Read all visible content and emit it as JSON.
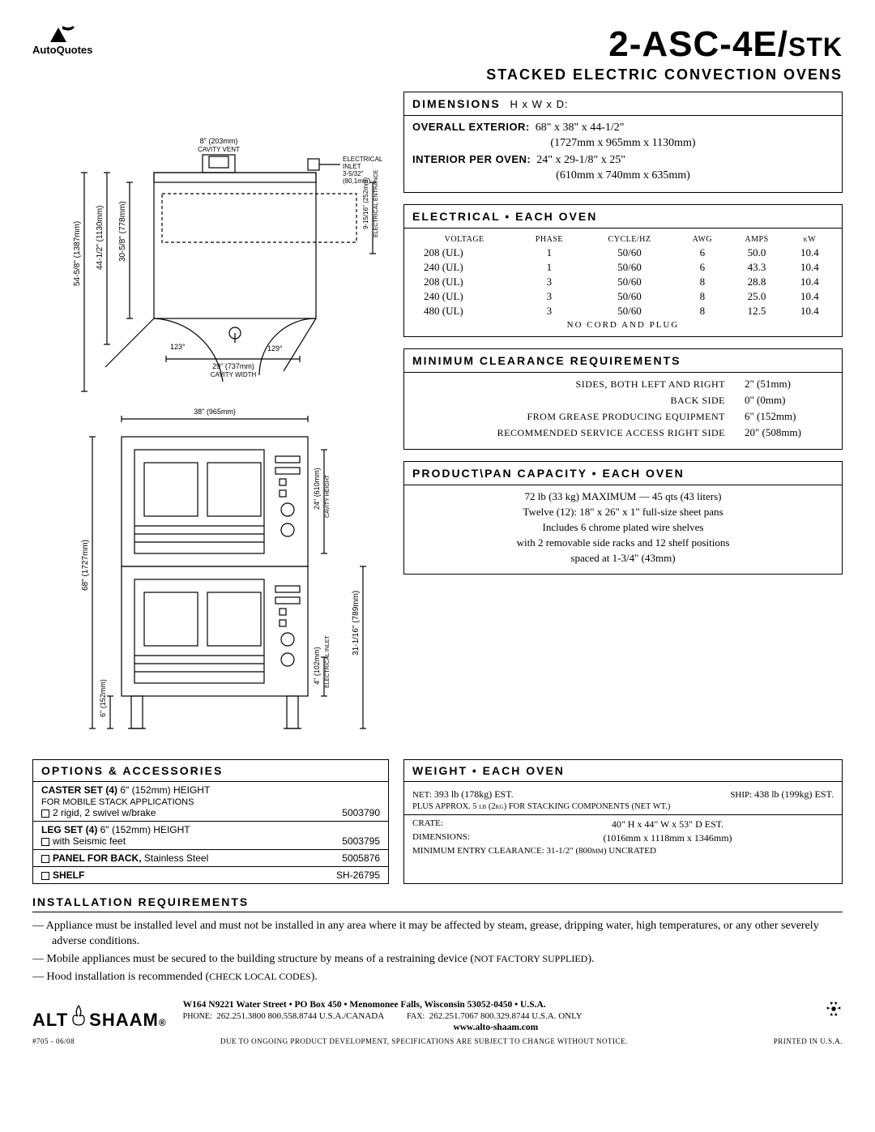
{
  "header": {
    "logo_top": "AutoQuotes",
    "title_main": "2-ASC-4E/",
    "title_stk": "STK",
    "subtitle": "STACKED ELECTRIC CONVECTION OVENS"
  },
  "diagram_top": {
    "cavity_vent": "8\" (203mm)\nCAVITY VENT",
    "elec_inlet": "ELECTRICAL\nINLET\n3-5/32\"\n(80,1mm)",
    "h1": "54-5/8\" (1387mm)",
    "h2": "44-1/2\" (1130mm)",
    "h3": "30-5/8\" (778mm)",
    "elec_entrance": "9-15/16\" (252mm)\nELECTRICAL ENTRANCE",
    "ang1": "123°",
    "ang2": "129°",
    "cavity_w": "29\" (737mm)\nCAVITY WIDTH",
    "width": "38\" (965mm)"
  },
  "diagram_bot": {
    "h_total": "68\" (1727mm)",
    "h_leg": "6\" (152mm)",
    "cavity_h": "24\" (610mm)\nCAVITY HEIGHT",
    "elec_inlet": "4\" (102mm)\nELECTRICAL INLET",
    "h_lower": "31-1/16\" (789mm)"
  },
  "dimensions": {
    "head": "DIMENSIONS",
    "head_sub": "H x W x D:",
    "overall_label": "OVERALL EXTERIOR:",
    "overall": "68\" x 38\" x 44-1/2\"",
    "overall_mm": "(1727mm x 965mm x 1130mm)",
    "interior_label": "INTERIOR PER OVEN:",
    "interior": "24\" x 29-1/8\" x 25\"",
    "interior_mm": "(610mm x 740mm x 635mm)"
  },
  "electrical": {
    "head": "ELECTRICAL • EACH OVEN",
    "cols": [
      "VOLTAGE",
      "PHASE",
      "CYCLE/HZ",
      "AWG",
      "AMPS",
      "kW"
    ],
    "rows": [
      [
        "208 (UL)",
        "1",
        "50/60",
        "6",
        "50.0",
        "10.4"
      ],
      [
        "240 (UL)",
        "1",
        "50/60",
        "6",
        "43.3",
        "10.4"
      ],
      [
        "208 (UL)",
        "3",
        "50/60",
        "8",
        "28.8",
        "10.4"
      ],
      [
        "240 (UL)",
        "3",
        "50/60",
        "8",
        "25.0",
        "10.4"
      ],
      [
        "480 (UL)",
        "3",
        "50/60",
        "8",
        "12.5",
        "10.4"
      ]
    ],
    "foot": "NO CORD AND PLUG"
  },
  "clearance": {
    "head": "MINIMUM CLEARANCE REQUIREMENTS",
    "rows": [
      {
        "label": "SIDES, BOTH LEFT AND RIGHT",
        "val": "2\" (51mm)"
      },
      {
        "label": "BACK SIDE",
        "val": "0\" (0mm)"
      },
      {
        "label": "FROM GREASE PRODUCING EQUIPMENT",
        "val": "6\" (152mm)"
      },
      {
        "label": "RECOMMENDED SERVICE ACCESS RIGHT SIDE",
        "val": "20\" (508mm)"
      }
    ]
  },
  "capacity": {
    "head": "PRODUCT\\PAN CAPACITY • EACH OVEN",
    "lines": [
      "72 lb (33 kg) MAXIMUM — 45 qts (43 liters)",
      "Twelve (12): 18\" x 26\" x 1\" full-size sheet pans",
      "Includes 6 chrome plated wire shelves",
      "with 2 removable side racks and 12 shelf positions",
      "spaced at 1-3/4\" (43mm)"
    ]
  },
  "options": {
    "head": "OPTIONS & ACCESSORIES",
    "items": [
      {
        "bold": "CASTER SET (4)",
        "rest": " 6\" (152mm) HEIGHT",
        "sub": "FOR MOBILE STACK APPLICATIONS",
        "chk": "2 rigid, 2 swivel w/brake",
        "code": "5003790"
      },
      {
        "bold": "LEG SET (4)",
        "rest": " 6\" (152mm) HEIGHT",
        "chk": "with Seismic feet",
        "code": "5003795"
      },
      {
        "bold": "PANEL FOR BACK,",
        "rest": " Stainless Steel",
        "code": "5005876",
        "chk_inline": true
      },
      {
        "bold": "SHELF",
        "rest": "",
        "code": "SH-26795",
        "chk_inline": true
      }
    ]
  },
  "weight": {
    "head": "WEIGHT • EACH OVEN",
    "net_l": "NET:",
    "net": "393 lb (178kg) EST.",
    "ship_l": "SHIP:",
    "ship": "438 lb (199kg) EST.",
    "note": "PLUS APPROX. 5 lb (2kg) FOR STACKING COMPONENTS (NET WT.)",
    "crate_l": "CRATE:",
    "crate": "40\" H x 44\" W x 53\" D EST.",
    "dim_l": "DIMENSIONS:",
    "dim": "(1016mm x 1118mm x 1346mm)",
    "entry": "MINIMUM ENTRY CLEARANCE: 31-1/2\" (800mm) UNCRATED"
  },
  "install": {
    "head": "INSTALLATION REQUIREMENTS",
    "items": [
      "— Appliance must be installed level and must not be installed in any area where it may be affected by steam, grease, dripping water, high temperatures, or any other severely adverse conditions.",
      "— Mobile appliances must be secured to the building structure by means of a restraining device (NOT FACTORY SUPPLIED).",
      "— Hood installation is recommended (CHECK LOCAL CODES)."
    ]
  },
  "footer": {
    "brand": "ALTO-SHAAM",
    "addr": "W164 N9221 Water Street • PO Box 450 • Menomonee Falls, Wisconsin 53052-0450 • U.S.A.",
    "phone_l": "PHONE:",
    "phone": "262.251.3800   800.558.8744 U.S.A./CANADA",
    "fax_l": "FAX:",
    "fax": "262.251.7067   800.329.8744 U.S.A. ONLY",
    "web": "www.alto-shaam.com",
    "doc": "#705 - 06/08",
    "disclaim": "DUE TO ONGOING PRODUCT DEVELOPMENT, SPECIFICATIONS ARE SUBJECT TO CHANGE WITHOUT NOTICE.",
    "printed": "PRINTED IN U.S.A."
  }
}
